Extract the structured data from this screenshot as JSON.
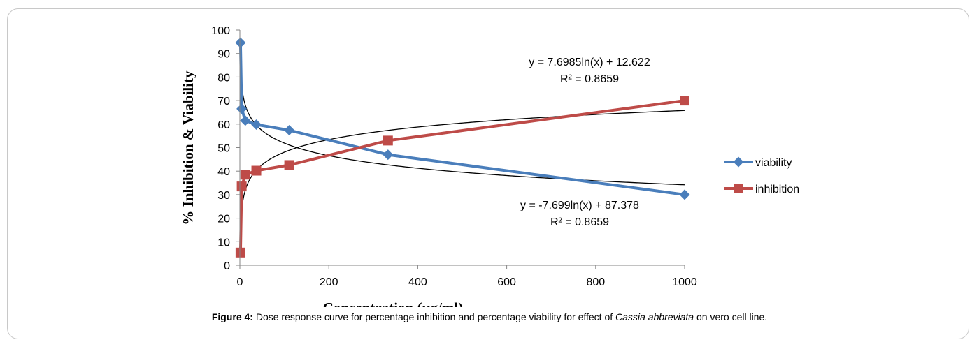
{
  "caption": {
    "label": "Figure 4:",
    "text_before": " Dose response curve for percentage inhibition and percentage viability for effect of ",
    "species": "Cassia abbreviata",
    "text_after": " on vero cell line."
  },
  "chart_data": {
    "type": "scatter",
    "xlabel": "Concentration (µg/ml)",
    "ylabel": "% Inhibition & Viability",
    "xlim": [
      0,
      1000
    ],
    "ylim": [
      0,
      100
    ],
    "x_ticks": [
      0,
      200,
      400,
      600,
      800,
      1000
    ],
    "y_ticks": [
      0,
      10,
      20,
      30,
      40,
      50,
      60,
      70,
      80,
      90,
      100
    ],
    "grid": false,
    "legend_position": "right",
    "series": [
      {
        "name": "viability",
        "color": "#4a7ebb",
        "marker": "diamond",
        "x": [
          1.4,
          4.1,
          12.3,
          37,
          111,
          333,
          1000
        ],
        "y": [
          94.6,
          66.5,
          61.5,
          59.8,
          57.4,
          47.0,
          30.0
        ]
      },
      {
        "name": "inhibition",
        "color": "#be4b48",
        "marker": "square",
        "x": [
          1.4,
          4.1,
          12.3,
          37,
          111,
          333,
          1000
        ],
        "y": [
          5.4,
          33.5,
          38.5,
          40.2,
          42.6,
          53.0,
          70.0
        ]
      }
    ],
    "trendlines": [
      {
        "series": "inhibition",
        "type": "log",
        "a": 7.6985,
        "b": 12.622,
        "color": "#000000",
        "equation": "y = 7.6985ln(x) + 12.622",
        "r2": "R² = 0.8659"
      },
      {
        "series": "viability",
        "type": "log",
        "a": -7.699,
        "b": 87.378,
        "color": "#000000",
        "equation": "y = -7.699ln(x) + 87.378",
        "r2": "R² = 0.8659"
      }
    ]
  }
}
